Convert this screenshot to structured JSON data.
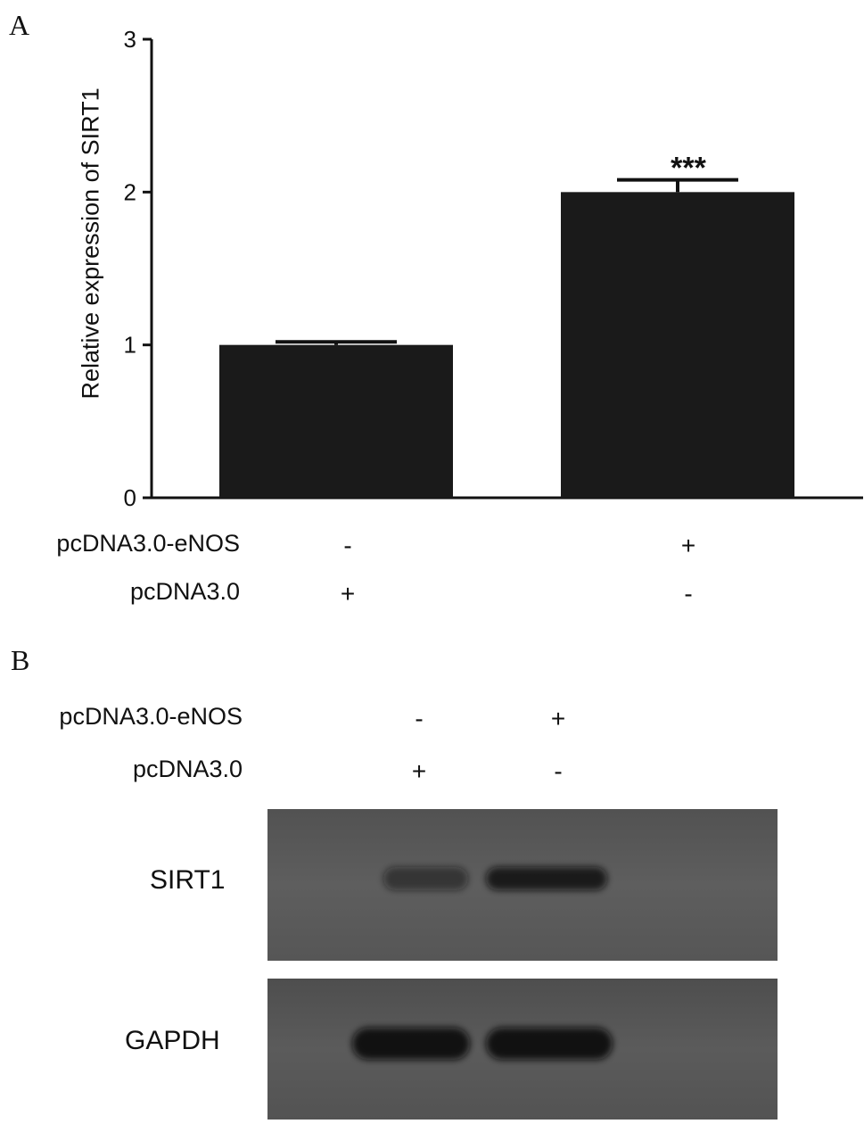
{
  "panels": {
    "a": {
      "letter": "A"
    },
    "b": {
      "letter": "B"
    }
  },
  "chart_data": {
    "type": "bar",
    "categories": [
      "pcDNA3.0",
      "pcDNA3.0-eNOS"
    ],
    "values": [
      1.0,
      2.0
    ],
    "errors": [
      0.02,
      0.08
    ],
    "annotations": [
      "",
      "***"
    ],
    "title": "",
    "xlabel": "",
    "ylabel": "Relative expression of SIRT1",
    "ylim": [
      0,
      3
    ],
    "yticks": [
      "0",
      "1",
      "2",
      "3"
    ],
    "bar_color": "#1a1a1a",
    "grid": false
  },
  "conditions_a": {
    "rows": [
      {
        "label": "pcDNA3.0-eNOS",
        "signs": [
          "-",
          "+"
        ]
      },
      {
        "label": "pcDNA3.0",
        "signs": [
          "+",
          "-"
        ]
      }
    ]
  },
  "conditions_b": {
    "rows": [
      {
        "label": "pcDNA3.0-eNOS",
        "signs": [
          "-",
          "+"
        ]
      },
      {
        "label": "pcDNA3.0",
        "signs": [
          "+",
          "-"
        ]
      }
    ]
  },
  "blot": {
    "rows": [
      {
        "label": "SIRT1",
        "band_intensity": [
          0.55,
          0.85
        ]
      },
      {
        "label": "GAPDH",
        "band_intensity": [
          0.95,
          0.95
        ]
      }
    ],
    "background_color": "#5d5d5d",
    "band_color": "#0c0c0c"
  }
}
